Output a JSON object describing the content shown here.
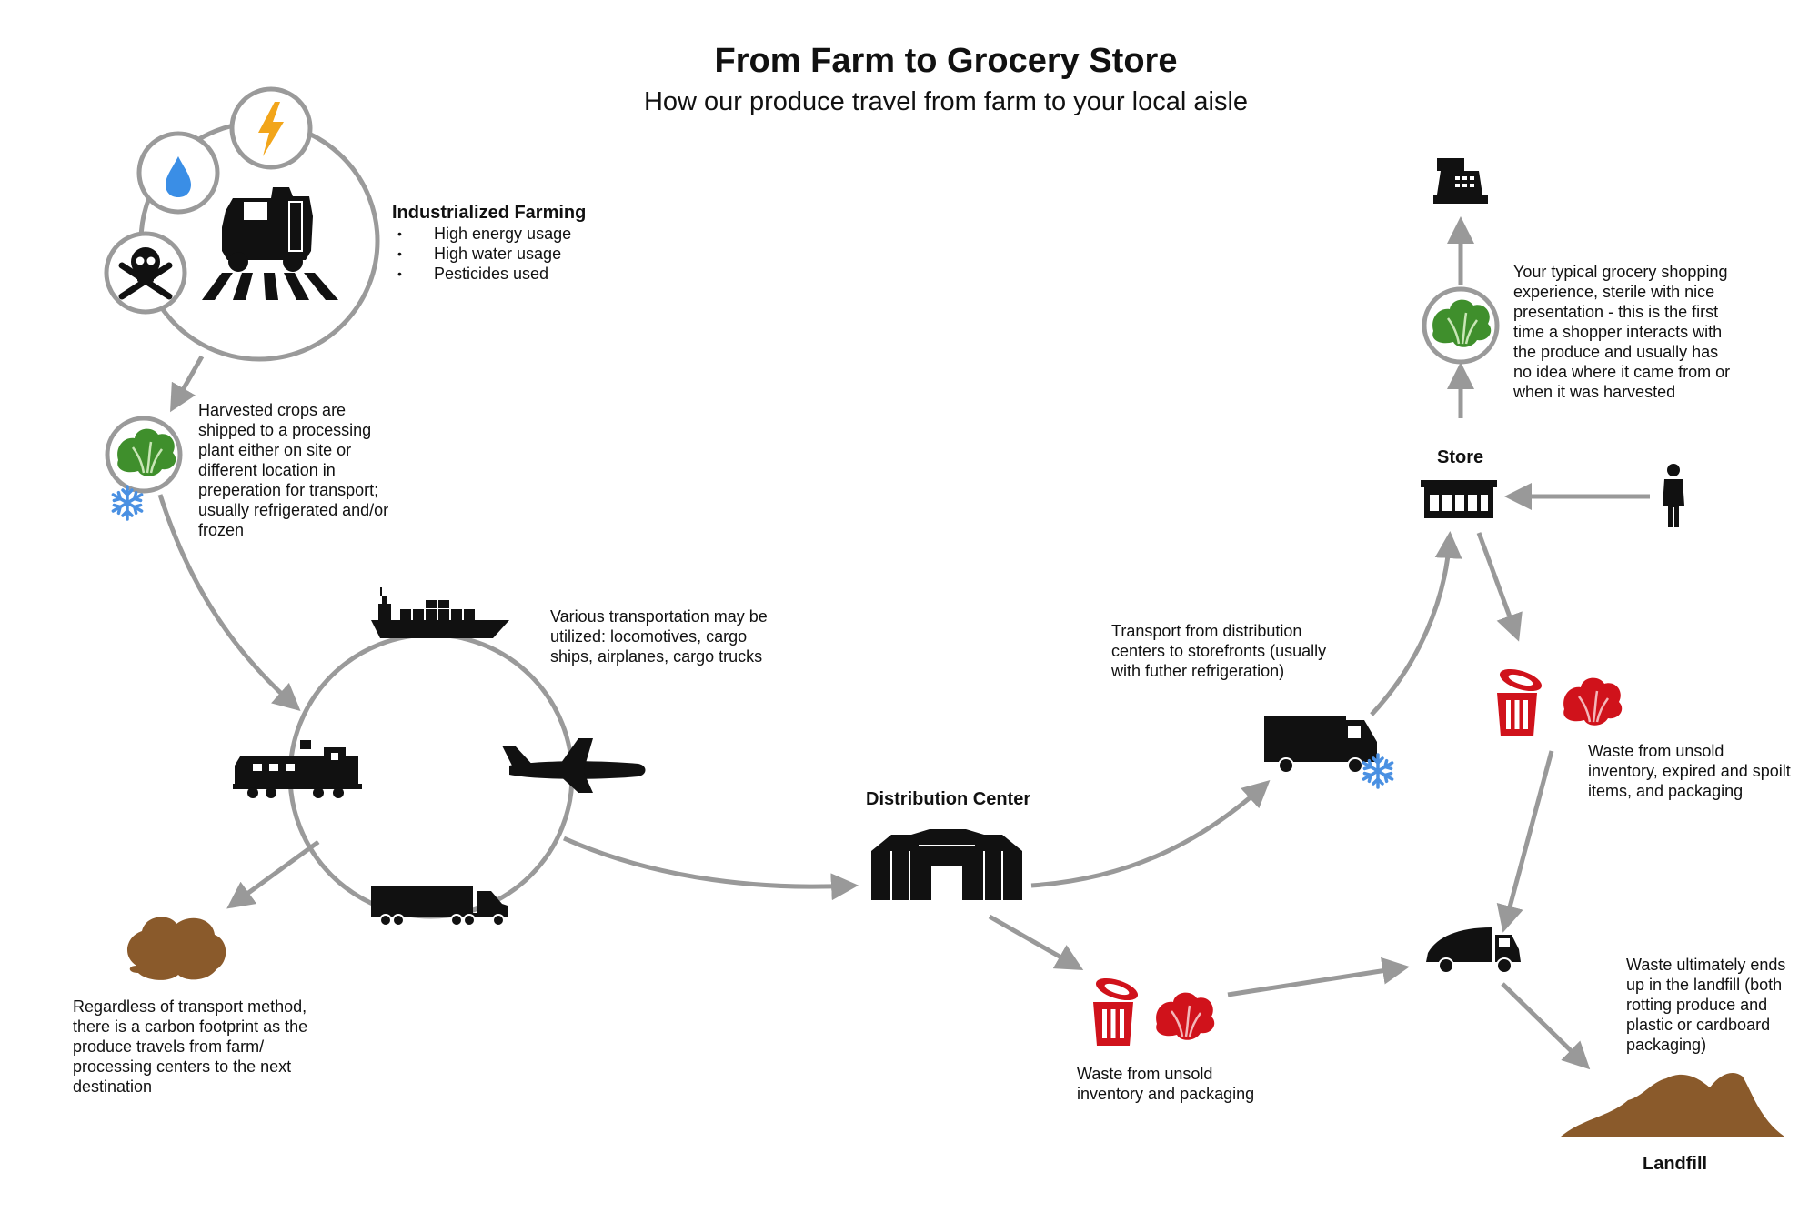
{
  "title": "From Farm to Grocery Store",
  "subtitle": "How our produce travel from farm to your local aisle",
  "farming": {
    "heading": "Industrialized Farming",
    "bullets": [
      "High energy usage",
      "High water usage",
      "Pesticides used"
    ]
  },
  "processing_text": [
    "Harvested crops are",
    "shipped to a processing",
    "plant either on site or",
    "different location in",
    "preperation for transport;",
    "usually refrigerated and/or",
    "frozen"
  ],
  "transport_text": [
    "Various transportation may be",
    "utilized: locomotives, cargo",
    "ships, airplanes, cargo trucks"
  ],
  "carbon_text": [
    "Regardless of transport method,",
    "there is a carbon footprint as the",
    "produce travels from farm/",
    "processing centers to the next",
    "destination"
  ],
  "distribution": {
    "label": "Distribution Center"
  },
  "dc_waste_text": [
    "Waste from unsold",
    "inventory and packaging"
  ],
  "storefront_text": [
    "Transport from distribution",
    "centers to storefronts (usually",
    "with futher refrigeration)"
  ],
  "store": {
    "label": "Store"
  },
  "shopping_text": [
    "Your typical grocery shopping",
    "experience, sterile with nice",
    "presentation - this is the first",
    "time a shopper interacts with",
    "the produce and usually has",
    "no idea where it came from or",
    "when it was harvested"
  ],
  "store_waste_text": [
    "Waste from unsold",
    "inventory, expired and spoilt",
    "items, and packaging"
  ],
  "landfill_text": [
    "Waste ultimately ends",
    "up in the landfill (both",
    "rotting produce and",
    "plastic or cardboard",
    "packaging)"
  ],
  "landfill": {
    "label": "Landfill"
  },
  "colors": {
    "ring": "#9a9a9a",
    "arrow": "#999999",
    "lettuce": "#3f8f2c",
    "waste_red": "#d0121b",
    "water": "#3a8ee6",
    "energy": "#f2a51a",
    "soil": "#8a5a2b",
    "snow": "#4a90e2"
  },
  "icons": [
    "tractor-icon",
    "water-drop-icon",
    "lightning-icon",
    "skull-icon",
    "lettuce-icon",
    "snowflake-icon",
    "ship-icon",
    "airplane-icon",
    "locomotive-icon",
    "semi-truck-icon",
    "carbon-cloud-icon",
    "warehouse-icon",
    "trash-can-icon",
    "delivery-truck-icon",
    "store-icon",
    "person-icon",
    "cash-register-icon",
    "garbage-truck-icon",
    "landfill-icon"
  ]
}
